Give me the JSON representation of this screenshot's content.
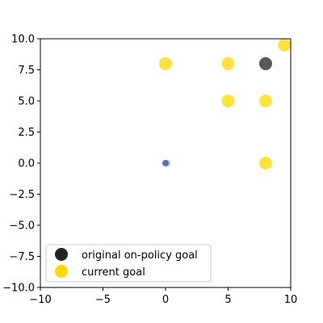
{
  "chart_data": {
    "type": "scatter",
    "xlim": [
      -10,
      10
    ],
    "ylim": [
      -10,
      10
    ],
    "xticks": [
      -10,
      -5,
      0,
      5,
      10
    ],
    "yticks": [
      -10.0,
      -7.5,
      -5.0,
      -2.5,
      0.0,
      2.5,
      5.0,
      7.5,
      10.0
    ],
    "xtick_labels": [
      "−10",
      "−5",
      "0",
      "5",
      "10"
    ],
    "ytick_labels": [
      "−10.0",
      "−7.5",
      "−5.0",
      "−2.5",
      "0.0",
      "2.5",
      "5.0",
      "7.5",
      "10.0"
    ],
    "grid": false,
    "legend_position": "lower-left",
    "series": [
      {
        "name": "original on-policy goal",
        "color": "#222222",
        "points": [
          [
            8,
            8
          ]
        ]
      },
      {
        "name": "current goal",
        "color": "#ffd700",
        "points": [
          [
            0,
            8
          ],
          [
            5,
            8
          ],
          [
            9.5,
            9.5
          ],
          [
            5,
            5
          ],
          [
            8,
            5
          ],
          [
            8,
            0
          ]
        ]
      },
      {
        "color": "#4a6aa8",
        "points": [
          [
            0,
            0
          ],
          [
            0.15,
            0
          ]
        ]
      }
    ]
  }
}
